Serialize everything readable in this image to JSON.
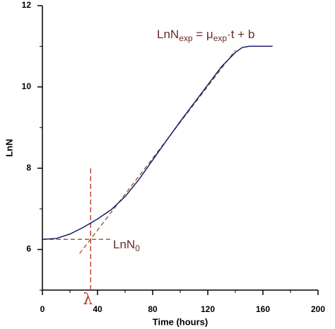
{
  "chart_data": {
    "type": "line",
    "xlabel": "Time (hours)",
    "ylabel": "LnN",
    "xlim": [
      0,
      200
    ],
    "ylim": [
      5,
      12
    ],
    "xticks": [
      0,
      40,
      80,
      120,
      160,
      200
    ],
    "yticks": [
      6,
      8,
      10,
      12
    ],
    "xminorticks": [
      20,
      60,
      100,
      140,
      180
    ],
    "yminorticks": [
      5,
      7,
      9,
      11
    ],
    "series": [
      {
        "color": "#1a1a6e",
        "x": [
          0,
          10,
          20,
          30,
          40,
          50,
          60,
          70,
          80,
          90,
          100,
          110,
          120,
          130,
          140,
          145,
          150,
          160,
          167
        ],
        "values": [
          6.25,
          6.27,
          6.38,
          6.55,
          6.75,
          6.98,
          7.3,
          7.72,
          8.2,
          8.68,
          9.15,
          9.6,
          10.05,
          10.5,
          10.85,
          10.97,
          11.0,
          11.0,
          11.0
        ]
      }
    ],
    "fit_line": {
      "color": "#8b4513",
      "x": [
        27,
        140
      ],
      "values": [
        5.9,
        10.9
      ]
    },
    "n0_line": {
      "color": "#8b4513",
      "x": [
        0,
        50
      ],
      "values": [
        6.25,
        6.25
      ]
    },
    "lambda_line": {
      "color": "#c0392b",
      "x": [
        35,
        35
      ],
      "values": [
        5,
        8.0
      ]
    },
    "annotations": {
      "lambda": "λ",
      "n0": [
        "LnN",
        "0"
      ],
      "formula": [
        "LnN",
        "exp",
        " = μ",
        "exp",
        "·t + b"
      ]
    }
  }
}
